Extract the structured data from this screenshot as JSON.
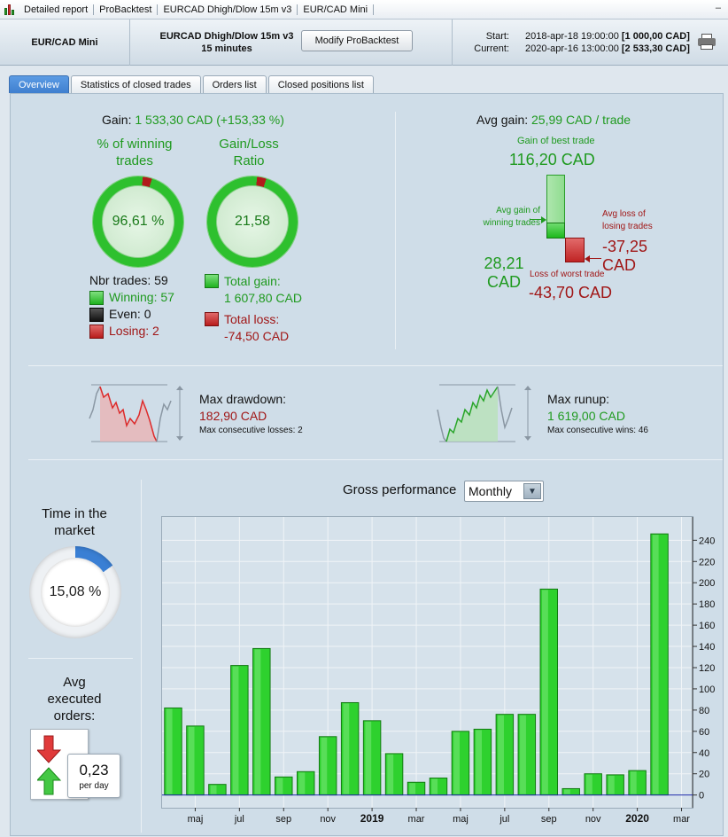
{
  "titlebar": {
    "items": [
      "Detailed report",
      "ProBacktest",
      "EURCAD Dhigh/Dlow 15m v3",
      "EUR/CAD Mini"
    ],
    "minimize": "–"
  },
  "header": {
    "instrument": "EUR/CAD Mini",
    "strategy_name": "EURCAD Dhigh/Dlow 15m v3",
    "timeframe": "15 minutes",
    "modify_button": "Modify ProBacktest",
    "start_label": "Start:",
    "start_date": "2018-apr-18 19:00:00",
    "start_capital": "[1 000,00 CAD]",
    "current_label": "Current:",
    "current_date": "2020-apr-16 13:00:00",
    "current_capital": "[2 533,30 CAD]"
  },
  "tabs": [
    "Overview",
    "Statistics of closed trades",
    "Orders list",
    "Closed positions list"
  ],
  "gain": {
    "label": "Gain:",
    "value": "1 533,30 CAD (+153,33 %)",
    "winning_title_1": "% of winning",
    "winning_title_2": "trades",
    "winning_pct": "96,61 %",
    "ratio_title_1": "Gain/Loss",
    "ratio_title_2": "Ratio",
    "ratio": "21,58",
    "nbr_trades": "Nbr trades: 59",
    "winning": "Winning: 57",
    "even": "Even: 0",
    "losing": "Losing: 2",
    "total_gain_label": "Total gain:",
    "total_gain": "1 607,80 CAD",
    "total_loss_label": "Total loss:",
    "total_loss": "-74,50 CAD"
  },
  "avg": {
    "label": "Avg gain:",
    "value": "25,99 CAD / trade",
    "best_label": "Gain of best trade",
    "best_value": "116,20 CAD",
    "avg_win_label_1": "Avg gain of",
    "avg_win_label_2": "winning trades",
    "avg_win_value_1": "28,21",
    "avg_win_value_2": "CAD",
    "avg_loss_label_1": "Avg loss of",
    "avg_loss_label_2": "losing trades",
    "avg_loss_value_1": "-37,25",
    "avg_loss_value_2": "CAD",
    "worst_label": "Loss of worst trade",
    "worst_value": "-43,70 CAD"
  },
  "drawdown": {
    "label": "Max drawdown:",
    "value": "182,90 CAD",
    "sub": "Max consecutive losses: 2"
  },
  "runup": {
    "label": "Max runup:",
    "value": "1 619,00 CAD",
    "sub": "Max consecutive wins: 46"
  },
  "market": {
    "title_1": "Time in the",
    "title_2": "market",
    "value": "15,08 %",
    "fraction": 0.1508
  },
  "orders": {
    "title_1": "Avg",
    "title_2": "executed",
    "title_3": "orders:",
    "value": "0,23",
    "unit": "per day"
  },
  "performance": {
    "title": "Gross performance",
    "period": "Monthly"
  },
  "colors": {
    "green": "#1f9a1f",
    "red": "#a01616",
    "bar": "#22c022",
    "accent": "#3f7fcf"
  },
  "chart_data": {
    "type": "bar",
    "title": "Gross performance",
    "categories": [
      "2018-apr",
      "2018-maj",
      "2018-jun",
      "2018-jul",
      "2018-aug",
      "2018-sep",
      "2018-okt",
      "2018-nov",
      "2018-dec",
      "2019-jan",
      "2019-feb",
      "2019-mar",
      "2019-apr",
      "2019-maj",
      "2019-jun",
      "2019-jul",
      "2019-aug",
      "2019-sep",
      "2019-okt",
      "2019-nov",
      "2019-dec",
      "2020-jan",
      "2020-feb",
      "2020-mar"
    ],
    "values": [
      82,
      65,
      10,
      122,
      138,
      17,
      22,
      55,
      87,
      70,
      39,
      12,
      16,
      60,
      62,
      76,
      76,
      194,
      6,
      20,
      19,
      23,
      246,
      0
    ],
    "x_tick_labels": [
      "maj",
      "jul",
      "sep",
      "nov",
      "2019",
      "mar",
      "maj",
      "jul",
      "sep",
      "nov",
      "2020",
      "mar"
    ],
    "x_tick_index": [
      1,
      3,
      5,
      7,
      9,
      11,
      13,
      15,
      17,
      19,
      21,
      23
    ],
    "bold_ticks": [
      "2019",
      "2020"
    ],
    "y_ticks": [
      0,
      20,
      40,
      60,
      80,
      100,
      120,
      140,
      160,
      180,
      200,
      220,
      240
    ],
    "ylim": [
      -12,
      262
    ],
    "grid": true,
    "y_axis_side": "right"
  }
}
